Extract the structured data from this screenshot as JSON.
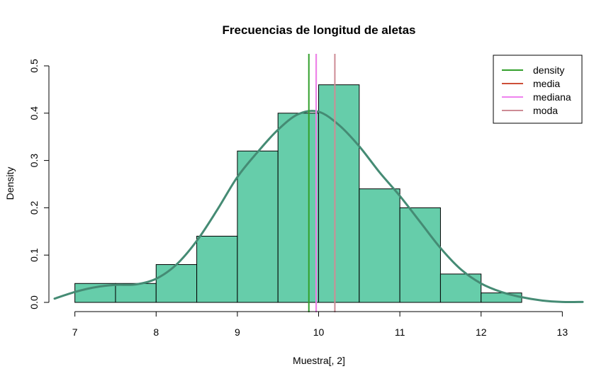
{
  "chart_data": {
    "type": "bar",
    "title": "Frecuencias de longitud de aletas",
    "xlabel": "Muestra[, 2]",
    "ylabel": "Density",
    "xlim": [
      6.75,
      13.25
    ],
    "ylim": [
      0,
      0.5
    ],
    "x_ticks": [
      "7",
      "8",
      "9",
      "10",
      "11",
      "12",
      "13"
    ],
    "y_ticks": [
      "0.0",
      "0.1",
      "0.2",
      "0.3",
      "0.4",
      "0.5"
    ],
    "histogram": {
      "color": "#66CDAA",
      "bins": [
        {
          "start": 7.0,
          "end": 7.5,
          "density": 0.04
        },
        {
          "start": 7.5,
          "end": 8.0,
          "density": 0.04
        },
        {
          "start": 8.0,
          "end": 8.5,
          "density": 0.08
        },
        {
          "start": 8.5,
          "end": 9.0,
          "density": 0.14
        },
        {
          "start": 9.0,
          "end": 9.5,
          "density": 0.32
        },
        {
          "start": 9.5,
          "end": 10.0,
          "density": 0.4
        },
        {
          "start": 10.0,
          "end": 10.5,
          "density": 0.46
        },
        {
          "start": 10.5,
          "end": 11.0,
          "density": 0.24
        },
        {
          "start": 11.0,
          "end": 11.5,
          "density": 0.2
        },
        {
          "start": 11.5,
          "end": 12.0,
          "density": 0.06
        },
        {
          "start": 12.0,
          "end": 12.5,
          "density": 0.02
        }
      ]
    },
    "density_curve": {
      "color": "#458B74",
      "x": [
        6.75,
        7.0,
        7.25,
        7.5,
        7.75,
        8.0,
        8.25,
        8.5,
        8.75,
        9.0,
        9.25,
        9.5,
        9.75,
        10.0,
        10.25,
        10.5,
        10.75,
        11.0,
        11.25,
        11.5,
        11.75,
        12.0,
        12.25,
        12.5,
        12.75,
        13.0,
        13.25
      ],
      "y": [
        0.008,
        0.022,
        0.032,
        0.037,
        0.038,
        0.05,
        0.08,
        0.13,
        0.195,
        0.265,
        0.318,
        0.365,
        0.398,
        0.403,
        0.375,
        0.33,
        0.275,
        0.225,
        0.17,
        0.115,
        0.07,
        0.04,
        0.022,
        0.011,
        0.004,
        0.001,
        0.001
      ]
    },
    "vlines": [
      {
        "name": "density",
        "x": 9.88,
        "color": "#33A02C"
      },
      {
        "name": "media",
        "x": 9.97,
        "color": "#CD4F39"
      },
      {
        "name": "mediana",
        "x": 9.97,
        "color": "#EE82EE"
      },
      {
        "name": "moda",
        "x": 10.2,
        "color": "#CD8C95"
      }
    ],
    "legend": {
      "position": "top-right",
      "entries": [
        {
          "label": "density",
          "color": "#33A02C"
        },
        {
          "label": "media",
          "color": "#CD4F39"
        },
        {
          "label": "mediana",
          "color": "#EE82EE"
        },
        {
          "label": "moda",
          "color": "#CD8C95"
        }
      ]
    }
  }
}
